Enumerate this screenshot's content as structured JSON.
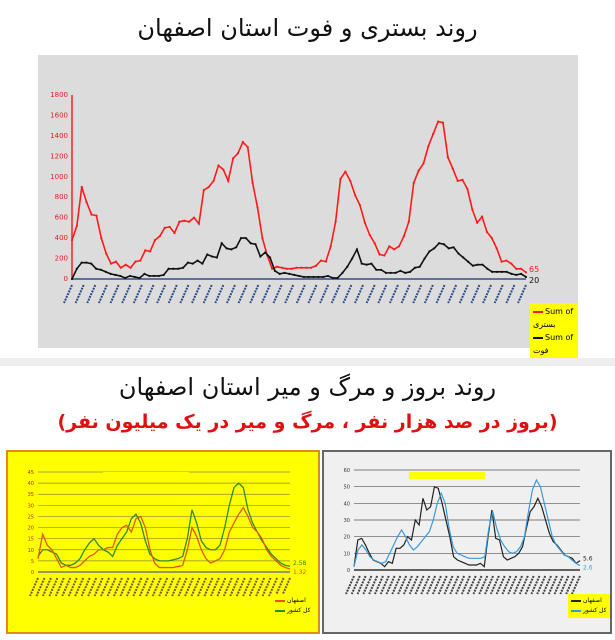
{
  "header": {
    "title": "روند بستری و فوت استان اصفهان"
  },
  "section2": {
    "title": "روند بروز و مرگ و میر استان اصفهان",
    "subtitle": "(بروز در صد هزار نفر ، مرگ و میر در یک میلیون نفر)"
  },
  "chart_data": [
    {
      "type": "line",
      "ylim": [
        0,
        1800
      ],
      "yticks": [
        0,
        200,
        400,
        600,
        800,
        1000,
        1200,
        1400,
        1600,
        1800
      ],
      "grid": false,
      "legend": "bottom-right",
      "series": [
        {
          "name": "Sum of بستری",
          "color": "#ff1a1a",
          "end_label": "65",
          "values": [
            380,
            520,
            900,
            750,
            630,
            620,
            400,
            250,
            150,
            170,
            110,
            140,
            110,
            170,
            180,
            280,
            270,
            380,
            420,
            500,
            510,
            450,
            560,
            570,
            560,
            600,
            540,
            870,
            900,
            960,
            1110,
            1070,
            960,
            1180,
            1230,
            1340,
            1290,
            940,
            700,
            400,
            230,
            100,
            120,
            110,
            100,
            100,
            110,
            110,
            110,
            110,
            130,
            180,
            170,
            320,
            560,
            980,
            1050,
            960,
            820,
            720,
            550,
            430,
            350,
            240,
            230,
            320,
            290,
            320,
            420,
            560,
            940,
            1060,
            1130,
            1300,
            1420,
            1540,
            1530,
            1190,
            1080,
            960,
            970,
            880,
            680,
            550,
            610,
            460,
            400,
            300,
            170,
            180,
            150,
            100,
            100,
            65
          ]
        },
        {
          "name": "Sum of فوت",
          "color": "#111111",
          "end_label": "20",
          "values": [
            0,
            100,
            160,
            160,
            150,
            100,
            90,
            70,
            50,
            40,
            30,
            10,
            30,
            20,
            10,
            50,
            30,
            30,
            30,
            40,
            100,
            100,
            100,
            110,
            160,
            150,
            180,
            150,
            240,
            220,
            210,
            350,
            300,
            290,
            310,
            400,
            400,
            350,
            340,
            220,
            260,
            210,
            80,
            50,
            60,
            50,
            40,
            30,
            20,
            20,
            20,
            20,
            20,
            30,
            10,
            10,
            60,
            120,
            200,
            290,
            150,
            140,
            150,
            90,
            90,
            60,
            60,
            60,
            80,
            60,
            70,
            110,
            120,
            200,
            270,
            300,
            350,
            340,
            300,
            310,
            250,
            210,
            170,
            130,
            140,
            140,
            100,
            70,
            70,
            70,
            70,
            50,
            40,
            50,
            20
          ]
        }
      ]
    },
    {
      "type": "line",
      "ylim": [
        0,
        45
      ],
      "yticks": [
        0,
        5,
        10,
        15,
        20,
        25,
        30,
        35,
        40,
        45
      ],
      "grid": true,
      "legend": "bottom-right",
      "series": [
        {
          "name": "کل کشور",
          "color": "#2e8b2e",
          "end_label": "2.58",
          "values": [
            7,
            10,
            10,
            9,
            8,
            4,
            3,
            3,
            4,
            6,
            10,
            13,
            15,
            12,
            10,
            9,
            7,
            12,
            15,
            18,
            24,
            26,
            22,
            14,
            8,
            6,
            5,
            5,
            5,
            5.5,
            6,
            7,
            15,
            28,
            22,
            14,
            11,
            10,
            10,
            12,
            20,
            30,
            38,
            40,
            38,
            28,
            22,
            18,
            14,
            11,
            8,
            6,
            4,
            3,
            2.58
          ]
        },
        {
          "name": "اصفهان",
          "color": "#e05a10",
          "end_label": "1.32",
          "values": [
            6,
            17,
            12,
            10,
            6,
            2,
            3,
            2,
            2,
            3,
            5,
            7,
            8,
            10,
            10,
            11,
            11,
            17,
            20,
            21,
            18,
            24,
            25,
            20,
            10,
            4,
            2,
            2,
            2,
            2,
            2.5,
            3,
            10,
            20,
            16,
            10,
            6,
            4,
            5,
            6,
            10,
            18,
            22,
            26,
            29,
            25,
            20,
            18,
            15,
            10,
            7,
            5,
            3,
            2,
            1.32
          ]
        }
      ]
    },
    {
      "type": "line",
      "ylim": [
        0,
        60
      ],
      "yticks": [
        0,
        10,
        20,
        30,
        40,
        50,
        60
      ],
      "grid": true,
      "legend": "bottom-right",
      "series": [
        {
          "name": "اصفهان",
          "color": "#222222",
          "end_label": "5.6",
          "values": [
            2,
            18,
            19,
            15,
            10,
            6,
            5,
            4,
            2,
            5,
            4,
            13,
            13,
            15,
            20,
            18,
            30,
            27,
            43,
            36,
            38,
            50,
            49,
            40,
            30,
            20,
            8,
            6,
            5,
            4,
            3,
            3,
            3,
            4,
            2,
            20,
            36,
            19,
            18,
            8,
            6,
            7,
            8,
            10,
            14,
            25,
            35,
            38,
            43,
            38,
            30,
            22,
            17,
            15,
            12,
            9,
            8,
            7,
            4,
            5.6
          ]
        },
        {
          "name": "کل کشور",
          "color": "#3a9ad9",
          "end_label": "2.6",
          "values": [
            2,
            12,
            15,
            12,
            8,
            6,
            5,
            4,
            5,
            10,
            15,
            20,
            24,
            20,
            15,
            12,
            14,
            17,
            20,
            23,
            30,
            40,
            46,
            40,
            25,
            14,
            10,
            9,
            8,
            7,
            7,
            7,
            7,
            8,
            25,
            35,
            25,
            18,
            14,
            11,
            10,
            11,
            14,
            20,
            35,
            48,
            54,
            50,
            40,
            30,
            20,
            15,
            12,
            9,
            8,
            6,
            4,
            2.6
          ]
        }
      ]
    }
  ]
}
